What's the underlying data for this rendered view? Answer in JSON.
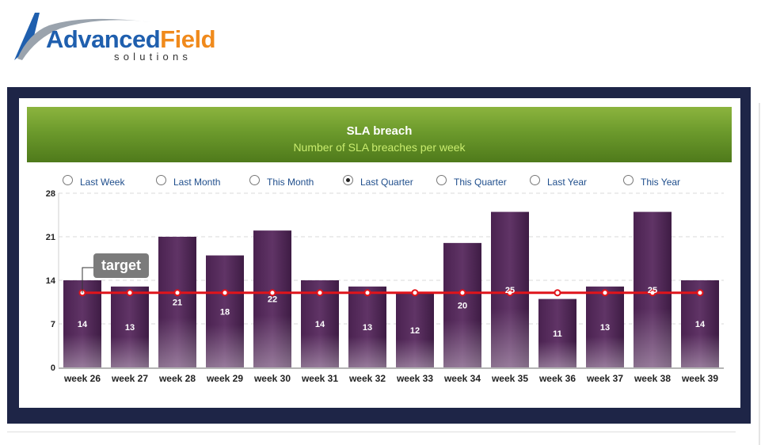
{
  "logo": {
    "word_part1": "Advanced",
    "word_part2": "Field",
    "subtitle": "solutions",
    "colors": {
      "blue": "#1f5fae",
      "orange": "#f08a1c"
    }
  },
  "radios": [
    {
      "label": "Last Week",
      "selected": false
    },
    {
      "label": "Last Month",
      "selected": false
    },
    {
      "label": "This Month",
      "selected": false
    },
    {
      "label": "Last Quarter",
      "selected": true
    },
    {
      "label": "This Quarter",
      "selected": false
    },
    {
      "label": "Last Year",
      "selected": false
    },
    {
      "label": "This Year",
      "selected": false
    }
  ],
  "target_label": "target",
  "chart_data": {
    "type": "bar",
    "title": "SLA breach",
    "subtitle": "Number of SLA breaches per week",
    "categories": [
      "week 26",
      "week 27",
      "week 28",
      "week 29",
      "week 30",
      "week 31",
      "week 32",
      "week 33",
      "week 34",
      "week 35",
      "week 36",
      "week 37",
      "week 38",
      "week 39"
    ],
    "series": [
      {
        "values": [
          14,
          13,
          21,
          18,
          22,
          14,
          13,
          12,
          20,
          25,
          11,
          13,
          25,
          14
        ],
        "color": "#5a2d5f"
      }
    ],
    "target": {
      "label": "target",
      "values": [
        12,
        12,
        12,
        12,
        12,
        12,
        12,
        12,
        12,
        12,
        12,
        12,
        12,
        12
      ],
      "color": "#e0141b"
    },
    "yticks": [
      0,
      7,
      14,
      21,
      28
    ],
    "ylim": [
      0,
      28
    ],
    "grid": true
  }
}
